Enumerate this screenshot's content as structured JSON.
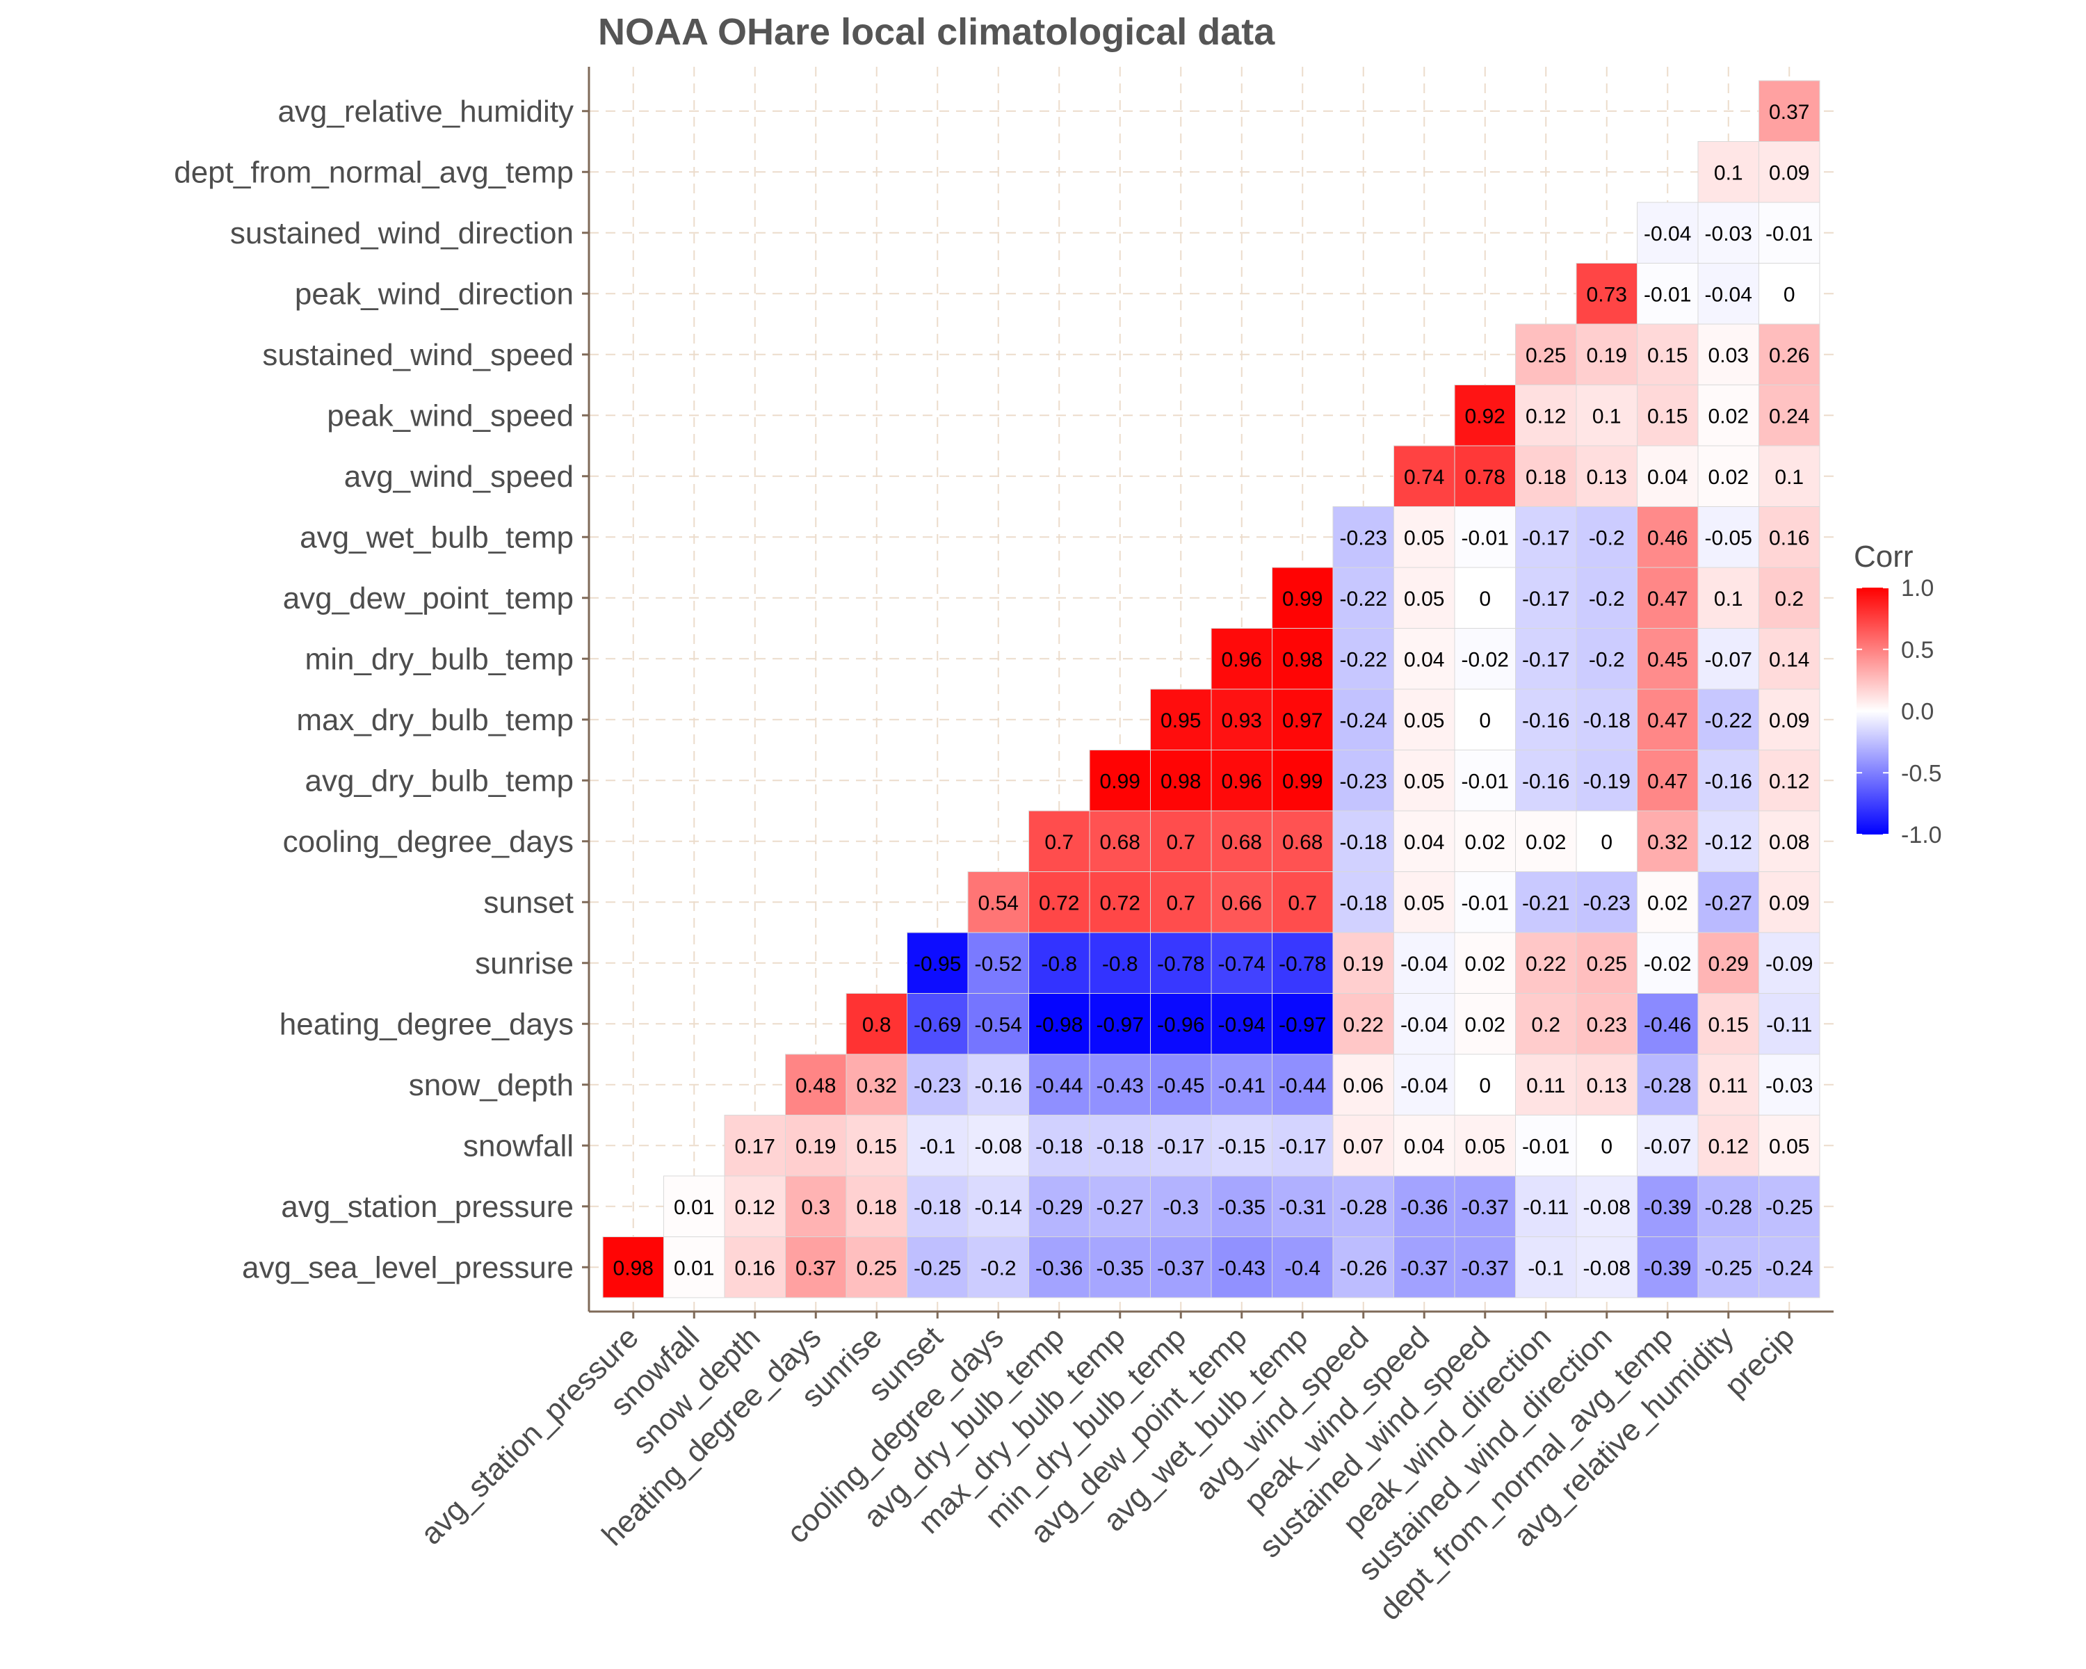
{
  "chart_data": {
    "type": "heatmap",
    "title": "NOAA OHare local climatological data",
    "x_categories": [
      "avg_station_pressure",
      "snowfall",
      "snow_depth",
      "heating_degree_days",
      "sunrise",
      "sunset",
      "cooling_degree_days",
      "avg_dry_bulb_temp",
      "max_dry_bulb_temp",
      "min_dry_bulb_temp",
      "avg_dew_point_temp",
      "avg_wet_bulb_temp",
      "avg_wind_speed",
      "peak_wind_speed",
      "sustained_wind_speed",
      "peak_wind_direction",
      "sustained_wind_direction",
      "dept_from_normal_avg_temp",
      "avg_relative_humidity",
      "precip"
    ],
    "y_categories": [
      "avg_sea_level_pressure",
      "avg_station_pressure",
      "snowfall",
      "snow_depth",
      "heating_degree_days",
      "sunrise",
      "sunset",
      "cooling_degree_days",
      "avg_dry_bulb_temp",
      "max_dry_bulb_temp",
      "min_dry_bulb_temp",
      "avg_dew_point_temp",
      "avg_wet_bulb_temp",
      "avg_wind_speed",
      "peak_wind_speed",
      "sustained_wind_speed",
      "peak_wind_direction",
      "sustained_wind_direction",
      "dept_from_normal_avg_temp",
      "avg_relative_humidity"
    ],
    "values": [
      [
        0.98,
        0.01,
        0.16,
        0.37,
        0.25,
        -0.25,
        -0.2,
        -0.36,
        -0.35,
        -0.37,
        -0.43,
        -0.4,
        -0.26,
        -0.37,
        -0.37,
        -0.1,
        -0.08,
        -0.39,
        -0.25,
        -0.24
      ],
      [
        null,
        0.01,
        0.12,
        0.3,
        0.18,
        -0.18,
        -0.14,
        -0.29,
        -0.27,
        -0.3,
        -0.35,
        -0.31,
        -0.28,
        -0.36,
        -0.37,
        -0.11,
        -0.08,
        -0.39,
        -0.28,
        -0.25
      ],
      [
        null,
        null,
        0.17,
        0.19,
        0.15,
        -0.1,
        -0.08,
        -0.18,
        -0.18,
        -0.17,
        -0.15,
        -0.17,
        0.07,
        0.04,
        0.05,
        -0.01,
        0,
        -0.07,
        0.12,
        0.05
      ],
      [
        null,
        null,
        null,
        0.48,
        0.32,
        -0.23,
        -0.16,
        -0.44,
        -0.43,
        -0.45,
        -0.41,
        -0.44,
        0.06,
        -0.04,
        0,
        0.11,
        0.13,
        -0.28,
        0.11,
        -0.03
      ],
      [
        null,
        null,
        null,
        null,
        0.8,
        -0.69,
        -0.54,
        -0.98,
        -0.97,
        -0.96,
        -0.94,
        -0.97,
        0.22,
        -0.04,
        0.02,
        0.2,
        0.23,
        -0.46,
        0.15,
        -0.11
      ],
      [
        null,
        null,
        null,
        null,
        null,
        -0.95,
        -0.52,
        -0.8,
        -0.8,
        -0.78,
        -0.74,
        -0.78,
        0.19,
        -0.04,
        0.02,
        0.22,
        0.25,
        -0.02,
        0.29,
        -0.09
      ],
      [
        null,
        null,
        null,
        null,
        null,
        null,
        0.54,
        0.72,
        0.72,
        0.7,
        0.66,
        0.7,
        -0.18,
        0.05,
        -0.01,
        -0.21,
        -0.23,
        0.02,
        -0.27,
        0.09
      ],
      [
        null,
        null,
        null,
        null,
        null,
        null,
        null,
        0.7,
        0.68,
        0.7,
        0.68,
        0.68,
        -0.18,
        0.04,
        0.02,
        0.02,
        0,
        0.32,
        -0.12,
        0.08
      ],
      [
        null,
        null,
        null,
        null,
        null,
        null,
        null,
        null,
        0.99,
        0.98,
        0.96,
        0.99,
        -0.23,
        0.05,
        -0.01,
        -0.16,
        -0.19,
        0.47,
        -0.16,
        0.12
      ],
      [
        null,
        null,
        null,
        null,
        null,
        null,
        null,
        null,
        null,
        0.95,
        0.93,
        0.97,
        -0.24,
        0.05,
        0,
        -0.16,
        -0.18,
        0.47,
        -0.22,
        0.09
      ],
      [
        null,
        null,
        null,
        null,
        null,
        null,
        null,
        null,
        null,
        null,
        0.96,
        0.98,
        -0.22,
        0.04,
        -0.02,
        -0.17,
        -0.2,
        0.45,
        -0.07,
        0.14
      ],
      [
        null,
        null,
        null,
        null,
        null,
        null,
        null,
        null,
        null,
        null,
        null,
        0.99,
        -0.22,
        0.05,
        0,
        -0.17,
        -0.2,
        0.47,
        0.1,
        0.2
      ],
      [
        null,
        null,
        null,
        null,
        null,
        null,
        null,
        null,
        null,
        null,
        null,
        null,
        -0.23,
        0.05,
        -0.01,
        -0.17,
        -0.2,
        0.46,
        -0.05,
        0.16
      ],
      [
        null,
        null,
        null,
        null,
        null,
        null,
        null,
        null,
        null,
        null,
        null,
        null,
        null,
        0.74,
        0.78,
        0.18,
        0.13,
        0.04,
        0.02,
        0.1
      ],
      [
        null,
        null,
        null,
        null,
        null,
        null,
        null,
        null,
        null,
        null,
        null,
        null,
        null,
        null,
        0.92,
        0.12,
        0.1,
        0.15,
        0.02,
        0.24
      ],
      [
        null,
        null,
        null,
        null,
        null,
        null,
        null,
        null,
        null,
        null,
        null,
        null,
        null,
        null,
        null,
        0.25,
        0.19,
        0.15,
        0.03,
        0.26
      ],
      [
        null,
        null,
        null,
        null,
        null,
        null,
        null,
        null,
        null,
        null,
        null,
        null,
        null,
        null,
        null,
        null,
        0.73,
        -0.01,
        -0.04,
        0
      ],
      [
        null,
        null,
        null,
        null,
        null,
        null,
        null,
        null,
        null,
        null,
        null,
        null,
        null,
        null,
        null,
        null,
        null,
        -0.04,
        -0.03,
        -0.01
      ],
      [
        null,
        null,
        null,
        null,
        null,
        null,
        null,
        null,
        null,
        null,
        null,
        null,
        null,
        null,
        null,
        null,
        null,
        null,
        0.1,
        0.09
      ],
      [
        null,
        null,
        null,
        null,
        null,
        null,
        null,
        null,
        null,
        null,
        null,
        null,
        null,
        null,
        null,
        null,
        null,
        null,
        null,
        0.37
      ]
    ],
    "legend": {
      "title": "Corr",
      "ticks": [
        "1.0",
        "0.5",
        "0.0",
        "-0.5",
        "-1.0"
      ],
      "range": [
        -1,
        1
      ],
      "position": "right"
    },
    "colors": {
      "low": "#0000ff",
      "mid": "#ffffff",
      "high": "#ff0000"
    },
    "grid": true
  }
}
